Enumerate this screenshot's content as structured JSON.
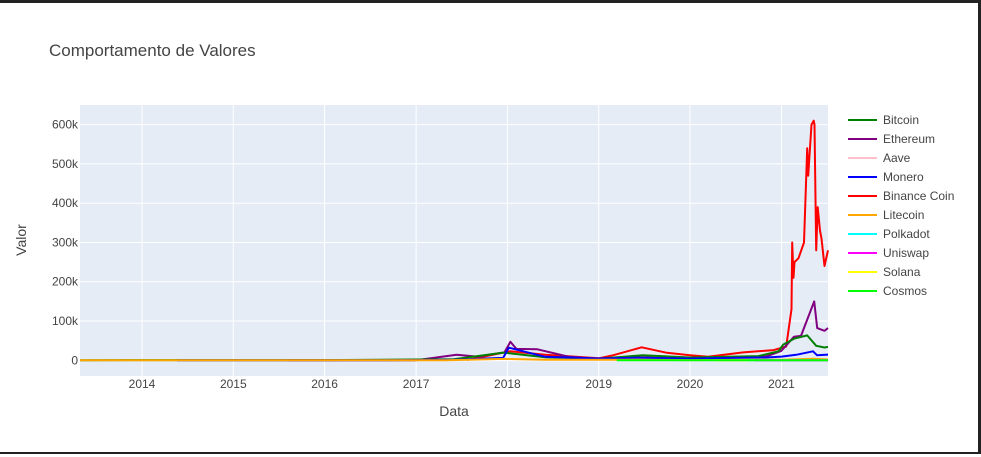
{
  "chart_data": {
    "type": "line",
    "title": "Comportamento de Valores",
    "xlabel": "Data",
    "ylabel": "Valor",
    "xlim": [
      "2013-04-28",
      "2021-07-06"
    ],
    "ylim": [
      -40000,
      650000
    ],
    "x_ticks": [
      "2014",
      "2015",
      "2016",
      "2017",
      "2018",
      "2019",
      "2020",
      "2021"
    ],
    "y_ticks": [
      {
        "value": 0,
        "label": "0"
      },
      {
        "value": 100000,
        "label": "100k"
      },
      {
        "value": 200000,
        "label": "200k"
      },
      {
        "value": 300000,
        "label": "300k"
      },
      {
        "value": 400000,
        "label": "400k"
      },
      {
        "value": 500000,
        "label": "500k"
      },
      {
        "value": 600000,
        "label": "600k"
      }
    ],
    "grid": true,
    "legend_position": "right",
    "plot_background": "#e5ecf6",
    "series": [
      {
        "name": "Bitcoin",
        "color": "#008000",
        "x": [
          "2013-04-28",
          "2016-01-01",
          "2017-06-01",
          "2017-12-17",
          "2018-06-01",
          "2019-01-01",
          "2019-06-26",
          "2020-01-01",
          "2020-10-01",
          "2020-12-20",
          "2021-01-08",
          "2021-02-20",
          "2021-04-14",
          "2021-05-20",
          "2021-06-22",
          "2021-07-06"
        ],
        "y": [
          135,
          430,
          2500,
          19500,
          7500,
          3800,
          12900,
          7200,
          10600,
          23000,
          40000,
          55000,
          63500,
          37000,
          32500,
          34000
        ]
      },
      {
        "name": "Ethereum",
        "color": "#800080",
        "x": [
          "2015-08-07",
          "2017-01-01",
          "2017-06-12",
          "2017-09-01",
          "2017-12-20",
          "2018-01-13",
          "2018-02-06",
          "2018-05-01",
          "2018-09-01",
          "2018-12-15",
          "2019-06-01",
          "2020-03-13",
          "2020-08-01",
          "2020-11-01",
          "2020-12-31",
          "2021-01-20",
          "2021-02-20",
          "2021-03-20",
          "2021-05-12",
          "2021-05-24",
          "2021-06-22",
          "2021-07-06"
        ],
        "y": [
          3,
          8,
          14000,
          9500,
          20000,
          47000,
          29000,
          28000,
          9500,
          4500,
          7500,
          3500,
          9000,
          10000,
          24000,
          38000,
          60000,
          62000,
          150000,
          82000,
          75000,
          82000
        ]
      },
      {
        "name": "Aave",
        "color": "#ffc0cb",
        "x": [
          "2020-10-05",
          "2021-01-01",
          "2021-02-10",
          "2021-05-18",
          "2021-07-06"
        ],
        "y": [
          50,
          90,
          520,
          640,
          300
        ]
      },
      {
        "name": "Monero",
        "color": "#0000ff",
        "x": [
          "2014-05-21",
          "2016-08-01",
          "2017-06-01",
          "2017-12-15",
          "2018-01-07",
          "2018-06-01",
          "2019-01-01",
          "2019-06-01",
          "2020-01-01",
          "2020-11-01",
          "2021-01-01",
          "2021-03-01",
          "2021-05-07",
          "2021-05-23",
          "2021-07-06"
        ],
        "y": [
          2,
          10,
          1200,
          6000,
          32000,
          9000,
          4500,
          6500,
          4500,
          7000,
          9500,
          14000,
          23000,
          13000,
          14500
        ]
      },
      {
        "name": "Binance Coin",
        "color": "#ff0000",
        "x": [
          "2017-07-25",
          "2018-01-12",
          "2018-06-01",
          "2019-01-01",
          "2019-03-01",
          "2019-06-22",
          "2019-10-01",
          "2020-01-01",
          "2020-03-13",
          "2020-08-01",
          "2020-12-01",
          "2021-01-20",
          "2021-02-10",
          "2021-02-13",
          "2021-02-18",
          "2021-02-22",
          "2021-03-10",
          "2021-04-01",
          "2021-04-14",
          "2021-04-18",
          "2021-05-01",
          "2021-05-10",
          "2021-05-13",
          "2021-05-20",
          "2021-05-26",
          "2021-06-04",
          "2021-06-10",
          "2021-06-22",
          "2021-07-06"
        ],
        "y": [
          1000,
          23000,
          14000,
          5000,
          13000,
          33000,
          19000,
          13000,
          9000,
          20000,
          26000,
          35000,
          130000,
          300000,
          210000,
          250000,
          260000,
          300000,
          540000,
          470000,
          600000,
          610000,
          600000,
          280000,
          390000,
          330000,
          310000,
          240000,
          280000
        ]
      },
      {
        "name": "Litecoin",
        "color": "#ffa500",
        "x": [
          "2013-04-28",
          "2017-05-01",
          "2017-12-19",
          "2018-06-01",
          "2019-06-22",
          "2020-01-01",
          "2021-01-01",
          "2021-05-10",
          "2021-07-06"
        ],
        "y": [
          4,
          30,
          3500,
          1200,
          1400,
          500,
          1500,
          4000,
          2000
        ]
      },
      {
        "name": "Polkadot",
        "color": "#00ffff",
        "x": [
          "2020-08-20",
          "2021-01-01",
          "2021-05-15",
          "2021-07-06"
        ],
        "y": [
          3,
          10,
          45,
          15
        ]
      },
      {
        "name": "Uniswap",
        "color": "#ff00ff",
        "x": [
          "2020-09-17",
          "2021-01-01",
          "2021-05-04",
          "2021-07-06"
        ],
        "y": [
          4,
          5,
          44,
          20
        ]
      },
      {
        "name": "Solana",
        "color": "#ffff00",
        "x": [
          "2020-04-11",
          "2021-01-01",
          "2021-05-18",
          "2021-07-06"
        ],
        "y": [
          1,
          2,
          55,
          34
        ]
      },
      {
        "name": "Cosmos",
        "color": "#00ff00",
        "x": [
          "2019-03-14",
          "2020-01-01",
          "2021-01-01",
          "2021-05-15",
          "2021-07-06"
        ],
        "y": [
          7,
          3,
          6,
          30,
          13
        ]
      }
    ]
  }
}
